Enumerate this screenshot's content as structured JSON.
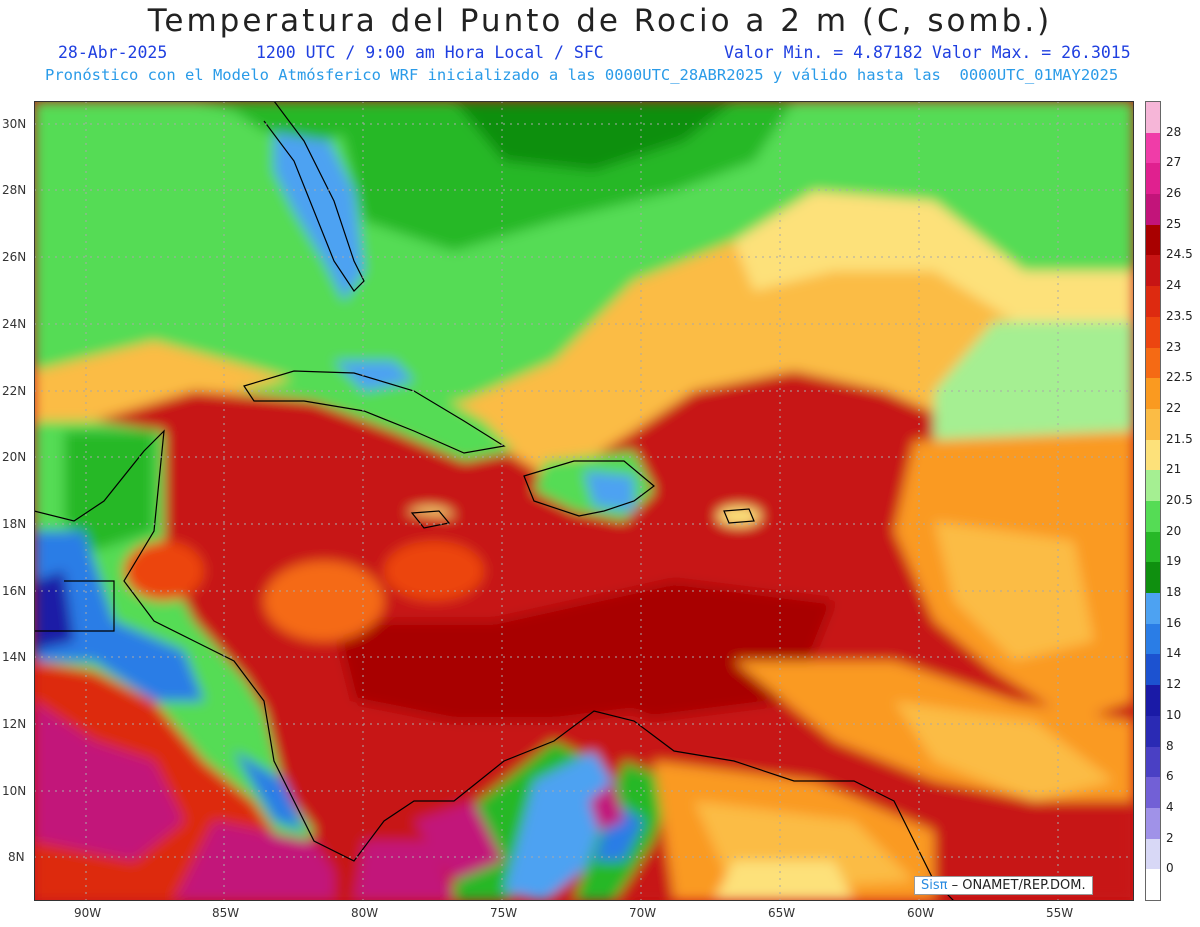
{
  "header": {
    "title": "Temperatura del Punto de Rocio a 2 m (C, somb.)",
    "date": "28-Abr-2025",
    "time_info": "1200 UTC / 9:00 am Hora Local / SFC",
    "min_value": "Valor Min. = 4.87182",
    "max_value": "Valor Max. = 26.3015",
    "model_info": "Pronóstico con el Modelo Atmósferico WRF inicializado a las 0000UTC_28ABR2025 y válido hasta las  0000UTC_01MAY2025"
  },
  "map": {
    "lon_labels": [
      "90W",
      "85W",
      "80W",
      "75W",
      "70W",
      "65W",
      "60W",
      "55W"
    ],
    "lat_labels": [
      "30N",
      "28N",
      "26N",
      "24N",
      "22N",
      "20N",
      "18N",
      "16N",
      "14N",
      "12N",
      "10N",
      "8N"
    ]
  },
  "colorbar": {
    "labels": [
      "28",
      "27",
      "26",
      "25",
      "24.5",
      "24",
      "23.5",
      "23",
      "22.5",
      "22",
      "21.5",
      "21",
      "20.5",
      "20",
      "19",
      "18",
      "16",
      "14",
      "12",
      "10",
      "8",
      "6",
      "4",
      "2",
      "0"
    ],
    "colors": [
      "#f6b6d8",
      "#f03ca8",
      "#e0208f",
      "#c2147a",
      "#a80000",
      "#c71414",
      "#dd2a10",
      "#ec4510",
      "#f56a14",
      "#fa9a20",
      "#fbbc45",
      "#fde17a",
      "#a5ef92",
      "#55dc55",
      "#27b827",
      "#0f8f0f",
      "#4da2f2",
      "#2a7de6",
      "#1c52d0",
      "#1a1aa6",
      "#2a2ab4",
      "#4a40c4",
      "#7260d6",
      "#a092e8",
      "#d8d8f6",
      "#ffffff"
    ]
  },
  "credit": {
    "brand": "Sisπ",
    "org": " – ONAMET/REP.DOM."
  }
}
